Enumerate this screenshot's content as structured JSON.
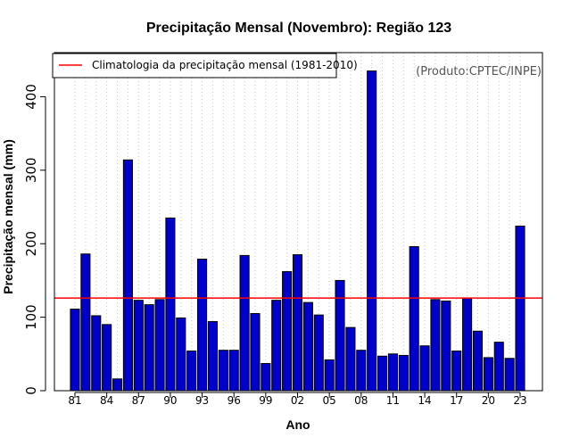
{
  "chart_data": {
    "type": "bar",
    "title": "Precipitação Mensal (Novembro): Região 123",
    "xlabel": "Ano",
    "ylabel": "Precipitação mensal (mm)",
    "ylim": [
      0,
      460
    ],
    "yticks": [
      0,
      100,
      200,
      300,
      400
    ],
    "grid": "vertical-dotted",
    "categories": [
      "1981",
      "1982",
      "1983",
      "1984",
      "1985",
      "1986",
      "1987",
      "1988",
      "1989",
      "1990",
      "1991",
      "1992",
      "1993",
      "1994",
      "1995",
      "1996",
      "1997",
      "1998",
      "1999",
      "2000",
      "2001",
      "2002",
      "2003",
      "2004",
      "2005",
      "2006",
      "2007",
      "2008",
      "2009",
      "2010",
      "2011",
      "2012",
      "2013",
      "2014",
      "2015",
      "2016",
      "2017",
      "2018",
      "2019",
      "2020",
      "2021",
      "2022",
      "2023"
    ],
    "tick_labels": [
      "81",
      "",
      "",
      "84",
      "",
      "",
      "87",
      "",
      "",
      "90",
      "",
      "",
      "93",
      "",
      "",
      "96",
      "",
      "",
      "99",
      "",
      "",
      "02",
      "",
      "",
      "05",
      "",
      "",
      "08",
      "",
      "",
      "11",
      "",
      "",
      "14",
      "",
      "",
      "17",
      "",
      "",
      "20",
      "",
      "",
      "23"
    ],
    "series": [
      {
        "name": "Precipitação mensal",
        "color": "#0000CD",
        "values": [
          111,
          186,
          102,
          90,
          16,
          314,
          123,
          117,
          124,
          235,
          99,
          54,
          179,
          94,
          55,
          55,
          184,
          105,
          37,
          123,
          162,
          185,
          120,
          103,
          42,
          150,
          86,
          55,
          435,
          47,
          50,
          48,
          196,
          61,
          124,
          122,
          54,
          126,
          81,
          45,
          66,
          44,
          224
        ]
      }
    ],
    "reference_line": {
      "label": "Climatologia da precipitação mensal (1981-2010)",
      "value": 126,
      "color": "#FF0000"
    },
    "legend_position": "top-left",
    "annotation": "(Produto:CPTEC/INPE)"
  }
}
